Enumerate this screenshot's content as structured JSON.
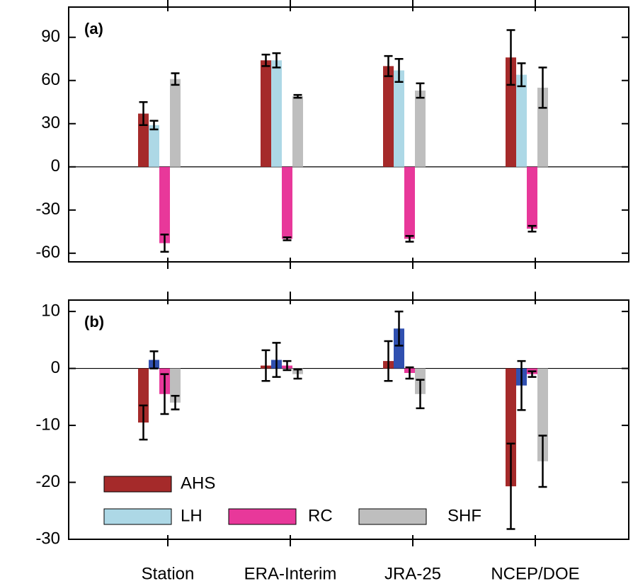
{
  "chart_data": [
    {
      "type": "bar",
      "label": "(a)",
      "series": [
        {
          "name": "AHS",
          "color": "#a52a2a",
          "values": [
            37,
            74,
            70,
            76
          ],
          "errors": [
            8,
            4,
            7,
            19
          ]
        },
        {
          "name": "LH",
          "color": "#add8e6",
          "values": [
            29,
            74,
            67,
            64
          ],
          "errors": [
            3,
            5,
            8,
            8
          ]
        },
        {
          "name": "RC",
          "color": "#e8389a",
          "values": [
            -53,
            -50,
            -50,
            -43
          ],
          "errors": [
            6,
            1,
            2,
            2
          ]
        },
        {
          "name": "SHF",
          "color": "#bebebe",
          "values": [
            61,
            49,
            53,
            55
          ],
          "errors": [
            4,
            1,
            5,
            14
          ]
        }
      ],
      "ylim": [
        -66,
        111
      ],
      "yticks": [
        -60,
        -30,
        0,
        30,
        60,
        90
      ]
    },
    {
      "type": "bar",
      "label": "(b)",
      "categories": [
        "Station",
        "ERA-Interim",
        "JRA-25",
        "NCEP/DOE"
      ],
      "series": [
        {
          "color": "#a52a2a",
          "values": [
            -9.5,
            0.5,
            1.3,
            -20.7
          ],
          "errors": [
            3,
            2.7,
            3.5,
            7.5
          ]
        },
        {
          "color": "#3050b0",
          "values": [
            1.5,
            1.5,
            7,
            -3
          ],
          "errors": [
            1.5,
            3,
            3,
            4.3
          ]
        },
        {
          "color": "#e8389a",
          "values": [
            -4.5,
            0.5,
            -0.8,
            -1
          ],
          "errors": [
            3.5,
            0.8,
            1,
            0.5
          ]
        },
        {
          "color": "#bebebe",
          "values": [
            -6,
            -1,
            -4.5,
            -16.3
          ],
          "errors": [
            1.2,
            0.8,
            2.5,
            4.5
          ]
        }
      ],
      "ylim": [
        -30,
        12
      ],
      "yticks": [
        -30,
        -20,
        -10,
        0,
        10
      ],
      "legend": "lower left"
    }
  ]
}
